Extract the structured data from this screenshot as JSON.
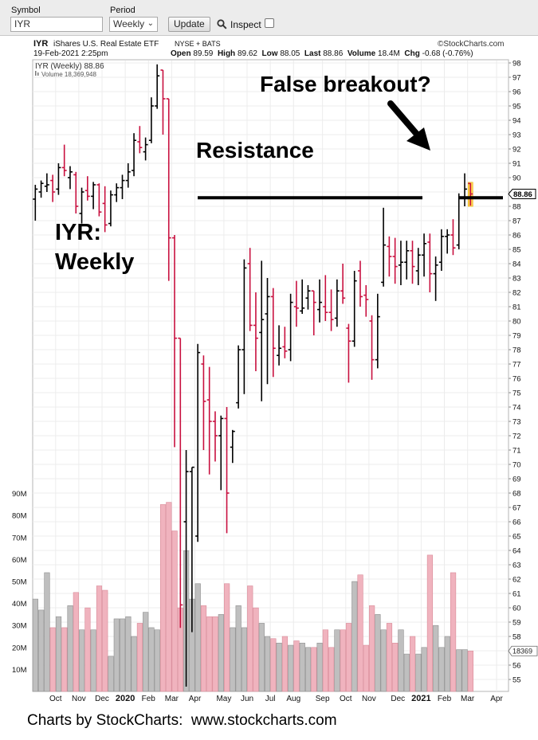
{
  "toolbar": {
    "symbol_label": "Symbol",
    "symbol_value": "IYR",
    "period_label": "Period",
    "period_value": "Weekly",
    "update_label": "Update",
    "inspect_label": "Inspect"
  },
  "header": {
    "ticker": "IYR",
    "fund_name": "iShares U.S. Real Estate ETF",
    "exchange": "NYSE + BATS",
    "copyright": "©StockCharts.com",
    "date": "19-Feb-2021 2:25pm",
    "open_label": "Open",
    "open": "89.59",
    "high_label": "High",
    "high": "89.62",
    "low_label": "Low",
    "low": "88.05",
    "last_label": "Last",
    "last": "88.86",
    "volume_label": "Volume",
    "volume": "18.4M",
    "chg_label": "Chg",
    "chg": "-0.68 (-0.76%)"
  },
  "legend": {
    "price": "IYR (Weekly) 88.86",
    "volume": "Volume 18,369,948"
  },
  "annotations": {
    "name_line1": "IYR:",
    "name_line2": "Weekly",
    "resistance": "Resistance",
    "false_breakout": "False breakout?"
  },
  "footer": {
    "text": "Charts by StockCharts:  www.stockcharts.com"
  },
  "colors": {
    "up": "#000000",
    "down": "#c8103f",
    "vol_up": "#bfbfbf",
    "vol_down": "#f0b3be",
    "last_bar_highlight": "#ffd24d",
    "last_price_badge": "#ffffff"
  },
  "chart_data": {
    "type": "ohlc",
    "title": "IYR iShares U.S. Real Estate ETF",
    "price_axis": {
      "min": 55,
      "max": 98,
      "ticks": [
        55,
        56,
        57,
        58,
        59,
        60,
        61,
        62,
        63,
        64,
        65,
        66,
        67,
        68,
        69,
        70,
        71,
        72,
        73,
        74,
        75,
        76,
        77,
        78,
        79,
        80,
        81,
        82,
        83,
        84,
        85,
        86,
        87,
        88,
        89,
        90,
        91,
        92,
        93,
        94,
        95,
        96,
        97,
        98
      ]
    },
    "volume_axis": {
      "labels": [
        "10M",
        "20M",
        "30M",
        "40M",
        "50M",
        "60M",
        "70M",
        "80M",
        "90M"
      ],
      "values": [
        10,
        20,
        30,
        40,
        50,
        60,
        70,
        80,
        90
      ]
    },
    "x_labels": [
      "Oct",
      "Nov",
      "Dec",
      "2020",
      "Feb",
      "Mar",
      "Apr",
      "May",
      "Jun",
      "Jul",
      "Aug",
      "Sep",
      "Oct",
      "Nov",
      "Dec",
      "2021",
      "Feb",
      "Mar",
      "Apr"
    ],
    "last_price": "88.86",
    "last_volume_label": "18369",
    "resistance_level": 88.6,
    "bars": [
      {
        "o": 88.5,
        "h": 89.5,
        "l": 87.0,
        "c": 89.2,
        "v": 42
      },
      {
        "o": 89.0,
        "h": 89.8,
        "l": 88.6,
        "c": 89.6,
        "v": 37
      },
      {
        "o": 89.4,
        "h": 90.3,
        "l": 89.0,
        "c": 89.5,
        "v": 54
      },
      {
        "o": 89.8,
        "h": 90.2,
        "l": 88.3,
        "c": 89.0,
        "v": 29
      },
      {
        "o": 89.2,
        "h": 91.0,
        "l": 88.8,
        "c": 90.7,
        "v": 34
      },
      {
        "o": 90.7,
        "h": 92.3,
        "l": 90.1,
        "c": 90.5,
        "v": 29
      },
      {
        "o": 90.0,
        "h": 90.8,
        "l": 89.2,
        "c": 90.4,
        "v": 39
      },
      {
        "o": 90.2,
        "h": 90.4,
        "l": 87.5,
        "c": 88.0,
        "v": 45
      },
      {
        "o": 87.5,
        "h": 89.3,
        "l": 86.8,
        "c": 89.0,
        "v": 28
      },
      {
        "o": 89.1,
        "h": 90.1,
        "l": 88.4,
        "c": 88.7,
        "v": 38
      },
      {
        "o": 88.7,
        "h": 89.7,
        "l": 87.8,
        "c": 89.5,
        "v": 28
      },
      {
        "o": 89.5,
        "h": 89.6,
        "l": 87.3,
        "c": 87.6,
        "v": 48
      },
      {
        "o": 88.2,
        "h": 89.4,
        "l": 86.2,
        "c": 86.7,
        "v": 46
      },
      {
        "o": 86.8,
        "h": 89.1,
        "l": 86.6,
        "c": 88.8,
        "v": 16
      },
      {
        "o": 88.8,
        "h": 89.6,
        "l": 88.3,
        "c": 89.3,
        "v": 33
      },
      {
        "o": 89.3,
        "h": 90.2,
        "l": 88.5,
        "c": 89.8,
        "v": 33
      },
      {
        "o": 89.8,
        "h": 91.0,
        "l": 89.3,
        "c": 90.4,
        "v": 34
      },
      {
        "o": 90.5,
        "h": 93.1,
        "l": 90.1,
        "c": 92.6,
        "v": 25
      },
      {
        "o": 92.5,
        "h": 93.6,
        "l": 91.7,
        "c": 92.1,
        "v": 31
      },
      {
        "o": 91.8,
        "h": 92.8,
        "l": 91.2,
        "c": 92.3,
        "v": 36
      },
      {
        "o": 92.6,
        "h": 95.6,
        "l": 92.4,
        "c": 95.0,
        "v": 29
      },
      {
        "o": 95.0,
        "h": 97.9,
        "l": 94.8,
        "c": 97.1,
        "v": 28
      },
      {
        "o": 97.5,
        "h": 97.3,
        "l": 93.0,
        "c": 95.5,
        "v": 85
      },
      {
        "o": 95.5,
        "h": 94.0,
        "l": 82.8,
        "c": 85.8,
        "v": 86
      },
      {
        "o": 85.8,
        "h": 86.0,
        "l": 71.2,
        "c": 78.8,
        "v": 73
      },
      {
        "o": 78.8,
        "h": 72.3,
        "l": 58.6,
        "c": 60.2,
        "v": 38
      },
      {
        "o": 66.0,
        "h": 71.0,
        "l": 54.5,
        "c": 69.5,
        "v": 64
      },
      {
        "o": 69.5,
        "h": 69.3,
        "l": 58.3,
        "c": 69.8,
        "v": 42
      },
      {
        "o": 65.0,
        "h": 78.4,
        "l": 64.6,
        "c": 77.8,
        "v": 49
      },
      {
        "o": 77.0,
        "h": 77.6,
        "l": 71.0,
        "c": 74.4,
        "v": 39
      },
      {
        "o": 74.5,
        "h": 76.8,
        "l": 69.3,
        "c": 73.0,
        "v": 34
      },
      {
        "o": 73.0,
        "h": 73.7,
        "l": 70.2,
        "c": 72.0,
        "v": 34
      },
      {
        "o": 72.0,
        "h": 73.4,
        "l": 68.2,
        "c": 73.2,
        "v": 35
      },
      {
        "o": 73.2,
        "h": 74.0,
        "l": 65.2,
        "c": 68.0,
        "v": 49
      },
      {
        "o": 71.2,
        "h": 72.4,
        "l": 70.1,
        "c": 72.3,
        "v": 29
      },
      {
        "o": 74.3,
        "h": 78.3,
        "l": 73.9,
        "c": 78.0,
        "v": 39
      },
      {
        "o": 78.0,
        "h": 84.3,
        "l": 74.9,
        "c": 83.7,
        "v": 29
      },
      {
        "o": 84.0,
        "h": 85.1,
        "l": 79.3,
        "c": 79.7,
        "v": 48
      },
      {
        "o": 79.7,
        "h": 82.0,
        "l": 76.5,
        "c": 78.8,
        "v": 38
      },
      {
        "o": 79.2,
        "h": 84.2,
        "l": 74.4,
        "c": 80.1,
        "v": 31
      },
      {
        "o": 80.5,
        "h": 83.0,
        "l": 75.6,
        "c": 81.7,
        "v": 25
      },
      {
        "o": 81.7,
        "h": 82.3,
        "l": 76.1,
        "c": 78.1,
        "v": 24
      },
      {
        "o": 77.6,
        "h": 79.7,
        "l": 76.9,
        "c": 78.1,
        "v": 22
      },
      {
        "o": 78.2,
        "h": 79.6,
        "l": 77.4,
        "c": 77.9,
        "v": 25
      },
      {
        "o": 78.0,
        "h": 81.9,
        "l": 77.2,
        "c": 81.3,
        "v": 21
      },
      {
        "o": 81.0,
        "h": 82.8,
        "l": 79.6,
        "c": 80.9,
        "v": 23
      },
      {
        "o": 80.7,
        "h": 82.9,
        "l": 80.5,
        "c": 80.9,
        "v": 22
      },
      {
        "o": 81.6,
        "h": 82.5,
        "l": 80.8,
        "c": 82.1,
        "v": 20
      },
      {
        "o": 82.1,
        "h": 82.1,
        "l": 79.0,
        "c": 81.3,
        "v": 20
      },
      {
        "o": 80.8,
        "h": 82.9,
        "l": 79.9,
        "c": 81.3,
        "v": 22
      },
      {
        "o": 81.0,
        "h": 83.2,
        "l": 80.0,
        "c": 80.6,
        "v": 28
      },
      {
        "o": 80.6,
        "h": 82.2,
        "l": 79.3,
        "c": 80.1,
        "v": 20
      },
      {
        "o": 80.2,
        "h": 82.9,
        "l": 79.6,
        "c": 82.1,
        "v": 28
      },
      {
        "o": 82.1,
        "h": 84.0,
        "l": 81.2,
        "c": 81.6,
        "v": 28
      },
      {
        "o": 79.5,
        "h": 79.8,
        "l": 75.7,
        "c": 78.6,
        "v": 31
      },
      {
        "o": 78.6,
        "h": 83.5,
        "l": 78.2,
        "c": 82.8,
        "v": 50
      },
      {
        "o": 83.5,
        "h": 84.2,
        "l": 81.0,
        "c": 81.7,
        "v": 53
      },
      {
        "o": 81.8,
        "h": 82.5,
        "l": 80.3,
        "c": 81.5,
        "v": 21
      },
      {
        "o": 80.0,
        "h": 80.4,
        "l": 75.9,
        "c": 77.3,
        "v": 39
      },
      {
        "o": 77.3,
        "h": 81.9,
        "l": 76.7,
        "c": 80.3,
        "v": 35
      },
      {
        "o": 82.7,
        "h": 87.9,
        "l": 82.4,
        "c": 85.3,
        "v": 28
      },
      {
        "o": 85.2,
        "h": 85.9,
        "l": 83.1,
        "c": 84.5,
        "v": 31
      },
      {
        "o": 84.5,
        "h": 85.8,
        "l": 82.6,
        "c": 83.8,
        "v": 22
      },
      {
        "o": 83.9,
        "h": 85.6,
        "l": 82.5,
        "c": 84.1,
        "v": 28
      },
      {
        "o": 84.1,
        "h": 85.6,
        "l": 82.9,
        "c": 84.9,
        "v": 17
      },
      {
        "o": 84.9,
        "h": 85.6,
        "l": 82.6,
        "c": 83.8,
        "v": 25
      },
      {
        "o": 83.5,
        "h": 85.1,
        "l": 82.5,
        "c": 84.6,
        "v": 17
      },
      {
        "o": 84.6,
        "h": 86.1,
        "l": 83.1,
        "c": 85.4,
        "v": 20
      },
      {
        "o": 85.5,
        "h": 86.1,
        "l": 82.0,
        "c": 83.3,
        "v": 62
      },
      {
        "o": 83.3,
        "h": 84.5,
        "l": 81.4,
        "c": 83.9,
        "v": 30
      },
      {
        "o": 84.1,
        "h": 86.4,
        "l": 83.5,
        "c": 85.9,
        "v": 20
      },
      {
        "o": 85.9,
        "h": 86.4,
        "l": 84.7,
        "c": 86.0,
        "v": 25
      },
      {
        "o": 86.0,
        "h": 87.1,
        "l": 84.6,
        "c": 85.1,
        "v": 54
      },
      {
        "o": 85.3,
        "h": 88.9,
        "l": 85.0,
        "c": 88.6,
        "v": 19
      },
      {
        "o": 88.6,
        "h": 90.3,
        "l": 88.0,
        "c": 89.2,
        "v": 19
      },
      {
        "o": 89.59,
        "h": 89.62,
        "l": 88.05,
        "c": 88.86,
        "v": 18.4
      }
    ]
  }
}
